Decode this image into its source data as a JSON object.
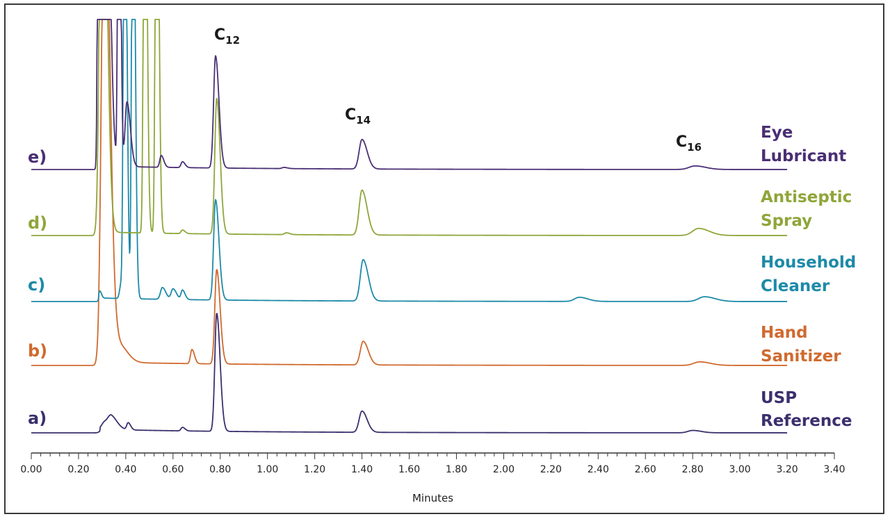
{
  "chart_data": {
    "type": "line",
    "xlabel": "Minutes",
    "xlim": [
      0.0,
      3.4
    ],
    "x_ticks": [
      "0.00",
      "0.20",
      "0.40",
      "0.60",
      "0.80",
      "1.00",
      "1.20",
      "1.40",
      "1.60",
      "1.80",
      "2.00",
      "2.20",
      "2.40",
      "2.60",
      "2.80",
      "3.00",
      "3.20",
      "3.40"
    ],
    "annotations": [
      {
        "base": "C",
        "sub": "12",
        "x": 0.8
      },
      {
        "base": "C",
        "sub": "14",
        "x": 1.4
      },
      {
        "base": "C",
        "sub": "16",
        "x": 2.8
      }
    ],
    "series": [
      {
        "letter": "a)",
        "name_lines": [
          "USP",
          "Reference"
        ],
        "color": "#3b2f6e",
        "peaks": [
          [
            0.31,
            0.06,
            0.012
          ],
          [
            0.34,
            0.1,
            0.014
          ],
          [
            0.41,
            0.06,
            0.006
          ],
          [
            0.64,
            0.03,
            0.006
          ],
          [
            0.785,
            1.0,
            0.008
          ],
          [
            1.4,
            0.18,
            0.012
          ],
          [
            2.8,
            0.02,
            0.02
          ]
        ]
      },
      {
        "letter": "b)",
        "name_lines": [
          "Hand",
          "Sanitizer"
        ],
        "color": "#d06a2e",
        "peaks": [
          [
            0.31,
            4.5,
            0.012
          ],
          [
            0.37,
            0.15,
            0.02
          ],
          [
            0.68,
            0.12,
            0.006
          ],
          [
            0.785,
            0.8,
            0.008
          ],
          [
            1.405,
            0.2,
            0.012
          ],
          [
            2.83,
            0.03,
            0.025
          ]
        ]
      },
      {
        "letter": "c)",
        "name_lines": [
          "Household",
          "Cleaner"
        ],
        "color": "#1d8aa8",
        "peaks": [
          [
            0.29,
            0.06,
            0.004
          ],
          [
            0.38,
            0.12,
            0.006
          ],
          [
            0.395,
            4.5,
            0.005
          ],
          [
            0.43,
            4.5,
            0.005
          ],
          [
            0.555,
            0.1,
            0.008
          ],
          [
            0.6,
            0.09,
            0.008
          ],
          [
            0.64,
            0.08,
            0.006
          ],
          [
            0.78,
            0.85,
            0.008
          ],
          [
            1.405,
            0.35,
            0.012
          ],
          [
            2.32,
            0.035,
            0.02
          ],
          [
            2.85,
            0.04,
            0.025
          ]
        ]
      },
      {
        "letter": "d)",
        "name_lines": [
          "Antiseptic",
          "Spray"
        ],
        "color": "#8ea63a",
        "peaks": [
          [
            0.3,
            4.5,
            0.01
          ],
          [
            0.48,
            4.5,
            0.005
          ],
          [
            0.53,
            4.5,
            0.005
          ],
          [
            0.64,
            0.03,
            0.006
          ],
          [
            0.785,
            1.15,
            0.008
          ],
          [
            1.4,
            0.38,
            0.012
          ],
          [
            1.08,
            0.015,
            0.008
          ],
          [
            2.825,
            0.06,
            0.025
          ]
        ]
      },
      {
        "letter": "e)",
        "name_lines": [
          "Eye",
          "Lubricant"
        ],
        "color": "#4a2e74",
        "peaks": [
          [
            0.285,
            4.5,
            0.004
          ],
          [
            0.31,
            4.5,
            0.01
          ],
          [
            0.405,
            0.55,
            0.008
          ],
          [
            0.37,
            4.5,
            0.004
          ],
          [
            0.55,
            0.1,
            0.006
          ],
          [
            0.64,
            0.05,
            0.006
          ],
          [
            0.78,
            0.95,
            0.008
          ],
          [
            1.4,
            0.25,
            0.012
          ],
          [
            1.07,
            0.01,
            0.008
          ],
          [
            2.81,
            0.03,
            0.025
          ]
        ]
      }
    ]
  }
}
